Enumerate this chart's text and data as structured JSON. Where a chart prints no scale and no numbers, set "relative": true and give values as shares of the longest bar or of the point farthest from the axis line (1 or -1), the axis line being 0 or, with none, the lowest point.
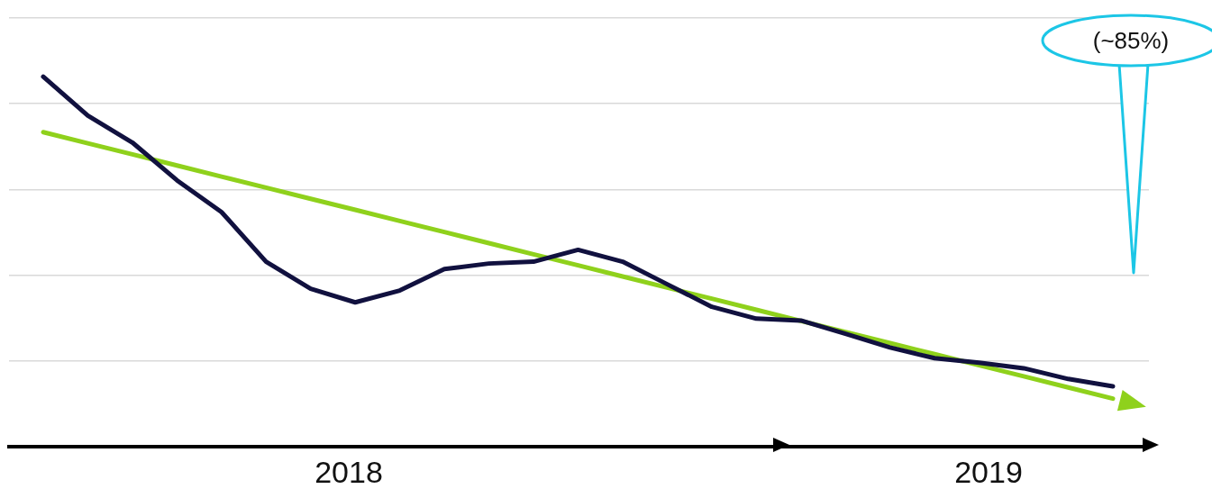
{
  "chart_data": {
    "type": "line",
    "relative": true,
    "grid": "y",
    "categories": [
      null,
      null,
      null,
      null,
      null,
      null,
      null,
      null,
      null,
      null,
      null,
      null,
      null,
      null,
      null,
      null,
      null,
      null,
      null,
      null,
      null,
      null,
      null,
      null,
      null
    ],
    "series": [
      {
        "color": "#11113f",
        "values": [
          1.0,
          0.895,
          0.822,
          0.72,
          0.634,
          0.5,
          0.427,
          0.39,
          0.422,
          0.48,
          0.495,
          0.5,
          0.532,
          0.5,
          0.439,
          0.378,
          0.346,
          0.341,
          0.305,
          0.268,
          0.239,
          0.227,
          0.212,
          0.183,
          0.163
        ]
      },
      {
        "color": "#8fd11c",
        "values": [
          0.85,
          0.82,
          0.79,
          0.76,
          0.73,
          0.7,
          0.67,
          0.64,
          0.61,
          0.58,
          0.55,
          0.52,
          0.49,
          0.46,
          0.43,
          0.4,
          0.37,
          0.34,
          0.31,
          0.28,
          0.25,
          0.22,
          0.19,
          0.16,
          0.13
        ]
      }
    ],
    "annotations": [
      "2018",
      "2019",
      "(~85%)"
    ]
  }
}
